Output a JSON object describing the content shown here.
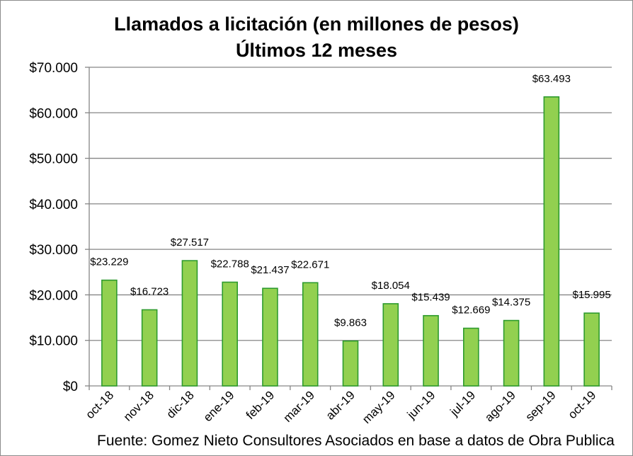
{
  "chart_data": {
    "type": "bar",
    "title": "Llamados a licitación (en millones de pesos)",
    "subtitle": "Últimos 12 meses",
    "categories": [
      "oct-18",
      "nov-18",
      "dic-18",
      "ene-19",
      "feb-19",
      "mar-19",
      "abr-19",
      "may-19",
      "jun-19",
      "jul-19",
      "ago-19",
      "sep-19",
      "oct-19"
    ],
    "values": [
      23229,
      16723,
      27517,
      22788,
      21437,
      22671,
      9863,
      18054,
      15439,
      12669,
      14375,
      63493,
      15995
    ],
    "value_labels": [
      "$23.229",
      "$16.723",
      "$27.517",
      "$22.788",
      "$21.437",
      "$22.671",
      "$9.863",
      "$18.054",
      "$15.439",
      "$12.669",
      "$14.375",
      "$63.493",
      "$15.995"
    ],
    "y_ticks": [
      0,
      10000,
      20000,
      30000,
      40000,
      50000,
      60000,
      70000
    ],
    "y_tick_labels": [
      "$0",
      "$10.000",
      "$20.000",
      "$30.000",
      "$40.000",
      "$50.000",
      "$60.000",
      "$70.000"
    ],
    "ylim": [
      0,
      70000
    ],
    "xlabel": "",
    "ylabel": "",
    "grid": true,
    "legend": "none",
    "bar_color": "#92d050",
    "bar_edge_color": "#2e9b2e",
    "grid_color": "#868686"
  },
  "footer": {
    "source": "Fuente: Gomez Nieto Consultores Asociados en base a datos de Obra Publica"
  }
}
